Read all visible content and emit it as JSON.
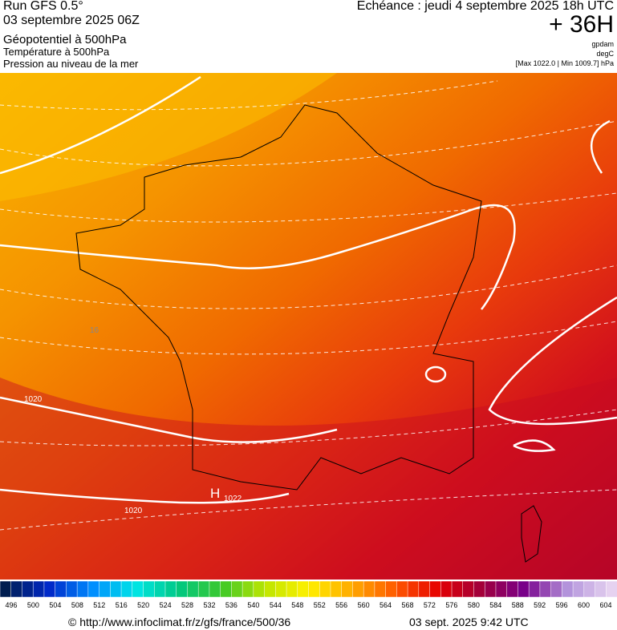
{
  "header": {
    "run": "Run GFS 0.5°",
    "date": "03 septembre 2025 06Z",
    "fields": [
      "Géopotentiel à 500hPa",
      "Température à 500hPa",
      "Pression au niveau de la mer"
    ],
    "forecast": "Echéance : jeudi 4 septembre 2025 18h UTC",
    "lead": "+ 36H",
    "units": [
      "gpdam",
      "degC",
      "[Max 1022.0 | Min 1009.7] hPa"
    ]
  },
  "map_labels": {
    "isobar_west": "1020",
    "isobar_south": "1020",
    "isotherm": "16",
    "high": "H",
    "high_value": "1022"
  },
  "colorbar": {
    "labels": [
      496,
      500,
      504,
      508,
      512,
      516,
      520,
      524,
      528,
      532,
      536,
      540,
      544,
      548,
      552,
      556,
      560,
      564,
      568,
      572,
      576,
      580,
      584,
      588,
      592,
      596,
      600,
      604
    ]
  },
  "footer": {
    "url": "© http://www.infoclimat.fr/z/gfs/france/500/36",
    "timestamp": "03 sept. 2025  9:42 UTC"
  }
}
